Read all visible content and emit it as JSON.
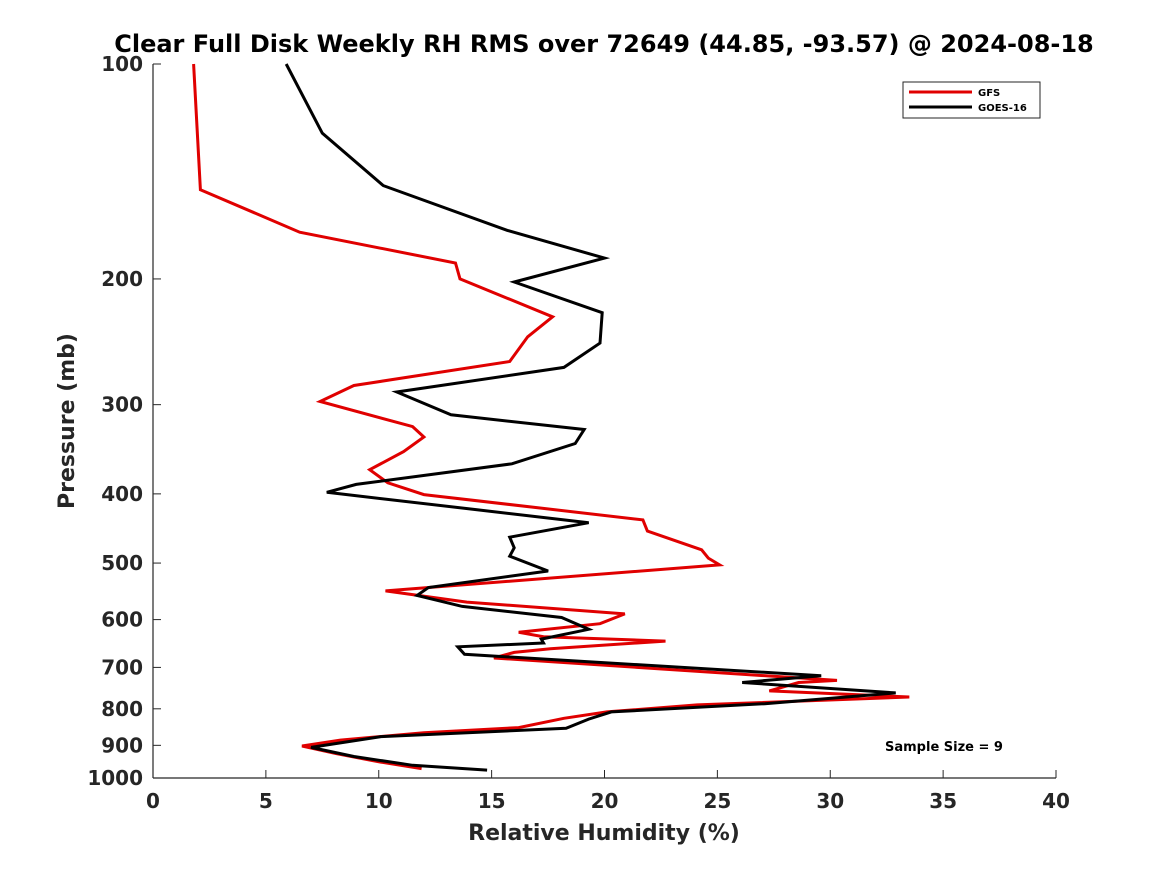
{
  "chart_data": {
    "type": "line",
    "title": "Clear Full Disk Weekly RH RMS over 72649 (44.85, -93.57) @ 2024-08-18",
    "xlabel": "Relative Humidity (%)",
    "ylabel": "Pressure (mb)",
    "xlim": [
      0,
      40
    ],
    "ylim": [
      100,
      1000
    ],
    "y_scale": "log",
    "y_reversed": true,
    "x_ticks": [
      0,
      5,
      10,
      15,
      20,
      25,
      30,
      35,
      40
    ],
    "x_tick_labels": [
      "0",
      "5",
      "10",
      "15",
      "20",
      "25",
      "30",
      "35",
      "40"
    ],
    "y_ticks": [
      100,
      200,
      300,
      400,
      500,
      600,
      700,
      800,
      900,
      1000
    ],
    "y_tick_labels": [
      "100",
      "200",
      "300",
      "400",
      "500",
      "600",
      "700",
      "800",
      "900",
      "1000"
    ],
    "grid": false,
    "legend_position": "top-right",
    "annotation": "Sample Size = 9",
    "series": [
      {
        "name": "GFS",
        "color": "#e00000",
        "points": [
          [
            1.8,
            100
          ],
          [
            2.1,
            150
          ],
          [
            6.5,
            172
          ],
          [
            13.4,
            190
          ],
          [
            13.6,
            200
          ],
          [
            17.7,
            226
          ],
          [
            16.6,
            241
          ],
          [
            15.8,
            261
          ],
          [
            8.9,
            282
          ],
          [
            7.4,
            297
          ],
          [
            11.5,
            322
          ],
          [
            12.0,
            333
          ],
          [
            11.1,
            349
          ],
          [
            9.6,
            370
          ],
          [
            10.4,
            386
          ],
          [
            12.0,
            401
          ],
          [
            21.7,
            435
          ],
          [
            21.9,
            451
          ],
          [
            24.3,
            479
          ],
          [
            24.6,
            492
          ],
          [
            25.1,
            503
          ],
          [
            10.3,
            547
          ],
          [
            13.9,
            567
          ],
          [
            20.9,
            589
          ],
          [
            19.8,
            608
          ],
          [
            16.2,
            625
          ],
          [
            17.3,
            634
          ],
          [
            22.7,
            643
          ],
          [
            17.6,
            659
          ],
          [
            16.0,
            667
          ],
          [
            15.1,
            679
          ],
          [
            30.3,
            730
          ],
          [
            28.6,
            735
          ],
          [
            27.3,
            755
          ],
          [
            33.5,
            770
          ],
          [
            24.1,
            790
          ],
          [
            20.1,
            808
          ],
          [
            18.2,
            825
          ],
          [
            16.2,
            850
          ],
          [
            12.0,
            864
          ],
          [
            8.3,
            885
          ],
          [
            6.6,
            902
          ],
          [
            8.1,
            924
          ],
          [
            10.0,
            949
          ],
          [
            11.9,
            970
          ]
        ]
      },
      {
        "name": "GOES-16",
        "color": "#000000",
        "points": [
          [
            5.9,
            100
          ],
          [
            7.5,
            125
          ],
          [
            10.2,
            148
          ],
          [
            15.7,
            171
          ],
          [
            20.0,
            187
          ],
          [
            16.0,
            202
          ],
          [
            19.9,
            223
          ],
          [
            19.8,
            246
          ],
          [
            18.2,
            266
          ],
          [
            10.8,
            288
          ],
          [
            13.2,
            310
          ],
          [
            19.1,
            325
          ],
          [
            18.7,
            340
          ],
          [
            15.9,
            363
          ],
          [
            9.0,
            388
          ],
          [
            7.7,
            398
          ],
          [
            19.3,
            439
          ],
          [
            15.8,
            460
          ],
          [
            16.0,
            476
          ],
          [
            15.8,
            489
          ],
          [
            17.5,
            513
          ],
          [
            12.2,
            541
          ],
          [
            11.7,
            555
          ],
          [
            13.7,
            575
          ],
          [
            18.1,
            596
          ],
          [
            19.3,
            619
          ],
          [
            17.2,
            639
          ],
          [
            17.3,
            647
          ],
          [
            13.5,
            655
          ],
          [
            13.8,
            671
          ],
          [
            29.6,
            719
          ],
          [
            26.1,
            735
          ],
          [
            32.9,
            760
          ],
          [
            27.1,
            787
          ],
          [
            20.3,
            808
          ],
          [
            19.3,
            827
          ],
          [
            18.3,
            852
          ],
          [
            10.1,
            875
          ],
          [
            7.0,
            906
          ],
          [
            8.9,
            933
          ],
          [
            11.5,
            960
          ],
          [
            14.8,
            975
          ]
        ]
      }
    ]
  }
}
